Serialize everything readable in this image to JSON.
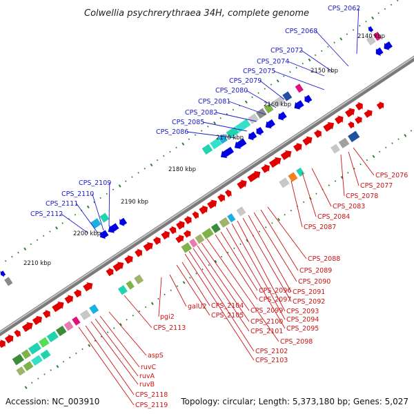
{
  "title": "Colwellia psychrerythraea 34H, complete genome",
  "accession": "Accession: NC_003910",
  "topology": "Topology: circular; Length: 5,373,180 bp; Genes: 5,027",
  "colors": {
    "backbone": "#8c8c8c",
    "forward_strand": "#e00000",
    "reverse_strand": "#0000e0",
    "tick": "#2e7d32",
    "label_forward": "#cc1111",
    "label_reverse": "#1a1acc"
  },
  "kbp_ticks": [
    "2140 kbp",
    "2150 kbp",
    "2160 kbp",
    "2170 kbp",
    "2180 kbp",
    "2190 kbp",
    "2200 kbp",
    "2210 kbp"
  ],
  "reverse_labels": [
    "CPS_2062",
    "CPS_2068",
    "CPS_2072",
    "CPS_2074",
    "CPS_2075",
    "CPS_2079",
    "CPS_2080",
    "CPS_2081",
    "CPS_2082",
    "CPS_2085",
    "CPS_2086",
    "CPS_2109",
    "CPS_2110",
    "CPS_2111",
    "CPS_2112"
  ],
  "forward_labels": [
    "CPS_2076",
    "CPS_2077",
    "CPS_2078",
    "CPS_2083",
    "CPS_2084",
    "CPS_2087",
    "CPS_2088",
    "CPS_2089",
    "CPS_2090",
    "CPS_2091",
    "CPS_2092",
    "CPS_2093",
    "CPS_2094",
    "CPS_2095",
    "CPS_2096",
    "CPS_2097",
    "CPS_2098",
    "CPS_2099",
    "CPS_2100",
    "CPS_2101",
    "CPS_2102",
    "CPS_2103",
    "CPS_2104",
    "CPS_2105",
    "galU2",
    "pgi2",
    "CPS_2113",
    "aspS",
    "ruvC",
    "ruvA",
    "ruvB",
    "CPS_2118",
    "CPS_2119"
  ]
}
